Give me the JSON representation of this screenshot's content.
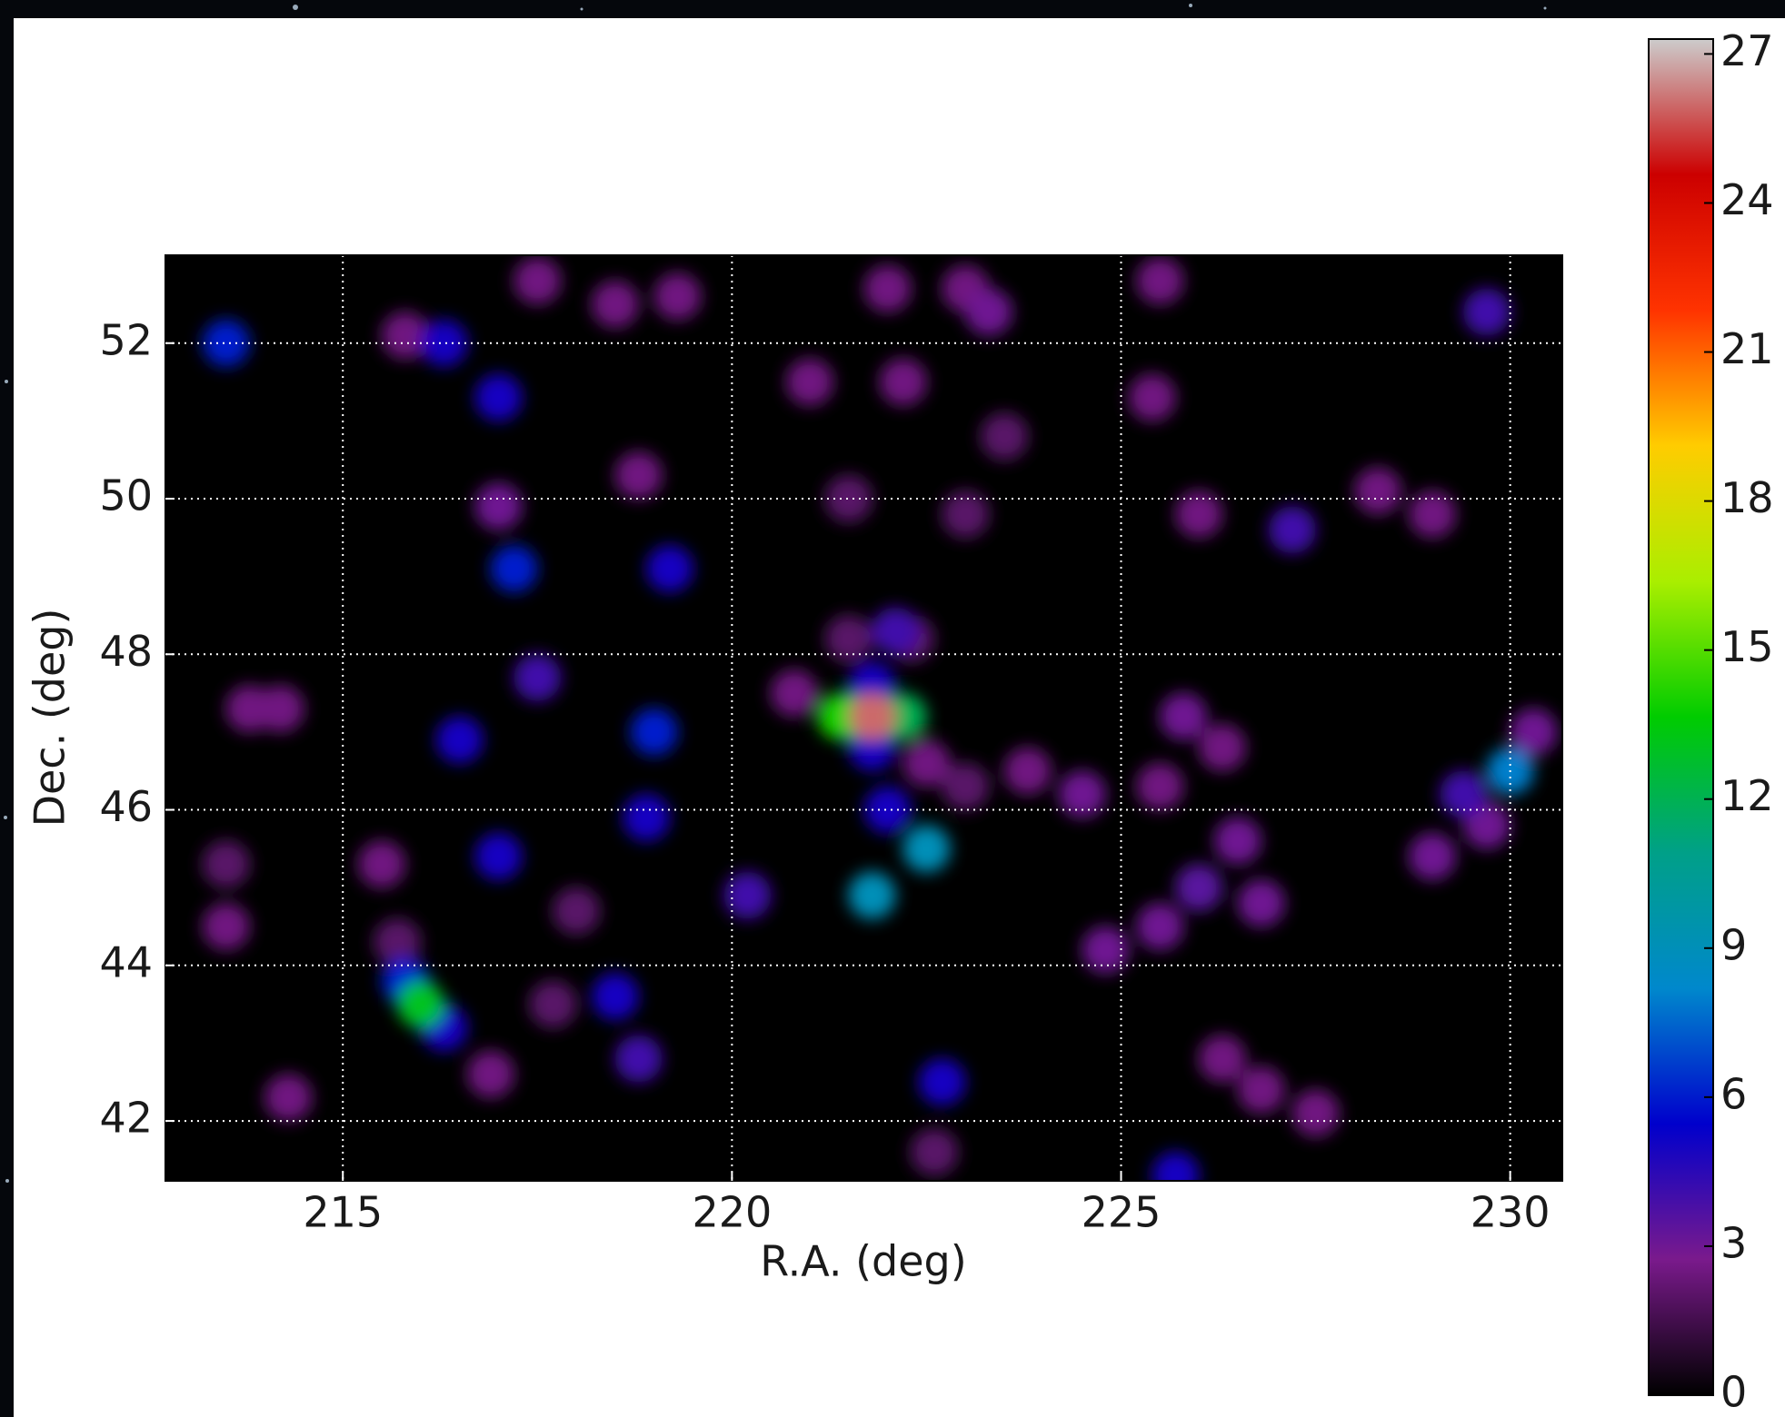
{
  "chart_data": {
    "type": "heatmap",
    "xlabel": "R.A. (deg)",
    "ylabel": "Dec. (deg)",
    "xlim": [
      212.72,
      230.67
    ],
    "ylim": [
      41.23,
      53.13
    ],
    "xticks": [
      215,
      220,
      225,
      230
    ],
    "yticks": [
      42,
      44,
      46,
      48,
      50,
      52
    ],
    "grid": true,
    "clim": [
      0,
      27.3
    ],
    "cticks": [
      0,
      3,
      6,
      9,
      12,
      15,
      18,
      21,
      24,
      27
    ],
    "colormap": [
      "#000000",
      "#7a1a8c",
      "#0000cc",
      "#0088cc",
      "#00a088",
      "#00cc00",
      "#aaee00",
      "#ffcc00",
      "#ff3300",
      "#cc0000",
      "#cccccc"
    ],
    "x": [
      217.5,
      218.5,
      219.3,
      222,
      223,
      225.5,
      221,
      222.2,
      223.5,
      218.8,
      221.5,
      226,
      228.3,
      229,
      225.4,
      223,
      213.5,
      215.5,
      213.5,
      218,
      217.7,
      222.6,
      215.8,
      214.2,
      213.8,
      226.8,
      227.5,
      226.3,
      214.3,
      216.9,
      215.7,
      224.5,
      223.8,
      225.5,
      226.3,
      222.5,
      223,
      220.8,
      221.5,
      222.3,
      226,
      225.5,
      226.8,
      226.5,
      224.8,
      225.8,
      229.7,
      229,
      230.3,
      229.4,
      223.3,
      217,
      229.7,
      227.2,
      217.5,
      220.2,
      222.1,
      218.8,
      213.5,
      217,
      216.3,
      219,
      217,
      218.9,
      222,
      218.5,
      222.7,
      225.7,
      216.5,
      217.2,
      219.2,
      215.8,
      216.3,
      221.8,
      221.8,
      230,
      222.5,
      221.8,
      222.2,
      216,
      221.4,
      221.8
    ],
    "y": [
      52.8,
      52.5,
      52.6,
      52.7,
      52.7,
      52.8,
      51.5,
      51.5,
      50.8,
      50.3,
      50,
      49.8,
      50.1,
      49.8,
      51.3,
      49.8,
      45.3,
      45.3,
      44.5,
      44.7,
      43.5,
      41.6,
      52.1,
      47.3,
      47.3,
      42.4,
      42.1,
      42.8,
      42.3,
      42.6,
      44.3,
      46.2,
      46.5,
      46.3,
      46.8,
      46.6,
      46.3,
      47.5,
      48.2,
      48.2,
      45,
      44.5,
      44.8,
      45.6,
      44.2,
      47.2,
      45.8,
      45.4,
      47,
      46.2,
      52.4,
      49.9,
      52.4,
      49.6,
      47.7,
      44.9,
      48.3,
      42.8,
      52,
      51.3,
      52,
      47,
      45.4,
      45.9,
      46,
      43.6,
      42.5,
      41.3,
      46.9,
      49.1,
      49.1,
      43.8,
      43.2,
      46.8,
      47.6,
      46.5,
      45.5,
      44.9,
      47.2,
      43.5,
      47.2,
      47.2
    ],
    "values": [
      2.5,
      2.5,
      2.5,
      2.5,
      2.5,
      2.5,
      2.5,
      2.5,
      2,
      2.5,
      2,
      2.5,
      2.5,
      2.5,
      2.5,
      2,
      2,
      2.5,
      2.5,
      2,
      2,
      2,
      2.5,
      2.5,
      2.5,
      2.5,
      2.5,
      2.5,
      2.5,
      2.5,
      2,
      3,
      2.5,
      2.5,
      2.5,
      2.5,
      2,
      2.5,
      2,
      2,
      3.5,
      3,
      3,
      3,
      3,
      3,
      3,
      3,
      3,
      4,
      3,
      3,
      4,
      4,
      4,
      4,
      4,
      4,
      6,
      5,
      5,
      6,
      5,
      5,
      5,
      5,
      5,
      5,
      5,
      6,
      5,
      6,
      5,
      5,
      5,
      8,
      9,
      9,
      12,
      13,
      14,
      26
    ]
  }
}
